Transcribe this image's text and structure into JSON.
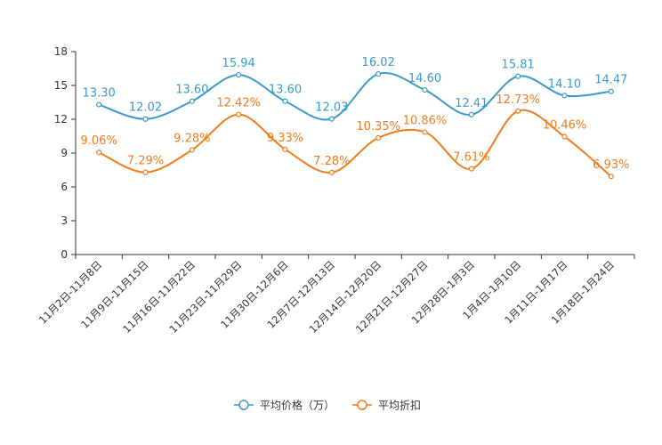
{
  "chart_data": {
    "type": "line",
    "categories": [
      "11月2日-11月8日",
      "11月9日-11月15日",
      "11月16日-11月22日",
      "11月23日-11月29日",
      "11月30日-12月6日",
      "12月7日-12月13日",
      "12月14日-12月20日",
      "12月21日-12月27日",
      "12月28日-1月3日",
      "1月4日-1月10日",
      "1月11日-1月17日",
      "1月18日-1月24日"
    ],
    "ylim": [
      0,
      18
    ],
    "yticks": [
      0,
      3,
      6,
      9,
      12,
      15,
      18
    ],
    "series": [
      {
        "name": "平均价格（万）",
        "color": "#3a9bc9",
        "values": [
          13.3,
          12.02,
          13.6,
          15.94,
          13.6,
          12.03,
          16.02,
          14.6,
          12.41,
          15.81,
          14.1,
          14.47
        ],
        "labels": [
          "13.30",
          "12.02",
          "13.60",
          "15.94",
          "13.60",
          "12.03",
          "16.02",
          "14.60",
          "12.41",
          "15.81",
          "14.10",
          "14.47"
        ]
      },
      {
        "name": "平均折扣",
        "color": "#f07c1c",
        "values": [
          9.06,
          7.29,
          9.28,
          12.42,
          9.33,
          7.28,
          10.35,
          10.86,
          7.61,
          12.73,
          10.46,
          6.93
        ],
        "labels": [
          "9.06%",
          "7.29%",
          "9.28%",
          "12.42%",
          "9.33%",
          "7.28%",
          "10.35%",
          "10.86%",
          "7.61%",
          "12.73%",
          "10.46%",
          "6.93%"
        ]
      }
    ],
    "legend_position": "bottom-center"
  }
}
